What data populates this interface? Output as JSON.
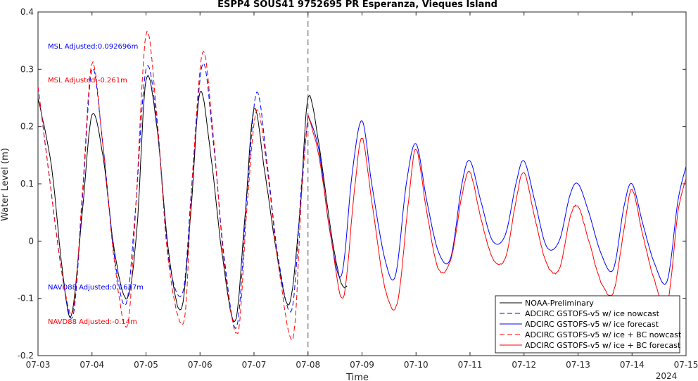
{
  "chart_data": {
    "type": "line",
    "title": "ESPP4 SOUS41 9752695 PR Esperanza, Vieques Island",
    "xlabel": "Time",
    "ylabel": "Water Level (m)",
    "x_ticks": [
      "07-03",
      "07-04",
      "07-05",
      "07-06",
      "07-07",
      "07-08",
      "07-09",
      "07-10",
      "07-11",
      "07-12",
      "07-13",
      "07-14",
      "07-15"
    ],
    "x_year_label": "2024",
    "x_range_days": [
      0,
      12
    ],
    "ylim": [
      -0.2,
      0.4
    ],
    "y_ticks": [
      "-0.2",
      "-0.1",
      "0",
      "0.1",
      "0.2",
      "0.3",
      "0.4"
    ],
    "nowcast_forecast_divider_day": 5,
    "grid": false,
    "legend_position": "bottom-right",
    "annotations": [
      {
        "text": "MSL Adjusted:0.092696m",
        "color": "#0000ff"
      },
      {
        "text": "MSL Adjusted:-0.261m",
        "color": "#ff0000"
      },
      {
        "text": "NAVD88 Adjusted:0.1637m",
        "color": "#0000ff"
      },
      {
        "text": "NAVD88 Adjusted:-0.14m",
        "color": "#ff0000"
      }
    ],
    "series": [
      {
        "name": "NOAA-Preliminary",
        "color": "#000000",
        "dash": "solid",
        "x_days": [
          0.0,
          0.25,
          0.45,
          0.62,
          0.82,
          1.0,
          1.2,
          1.42,
          1.65,
          1.83,
          2.0,
          2.2,
          2.42,
          2.65,
          2.83,
          3.0,
          3.2,
          3.42,
          3.65,
          3.83,
          4.0,
          4.2,
          4.42,
          4.65,
          4.85,
          5.0,
          5.2,
          5.42,
          5.6,
          5.72
        ],
        "values": [
          0.25,
          0.13,
          -0.05,
          -0.13,
          0.05,
          0.22,
          0.15,
          -0.02,
          -0.1,
          0.02,
          0.28,
          0.2,
          -0.02,
          -0.12,
          0.05,
          0.26,
          0.15,
          -0.03,
          -0.14,
          0.04,
          0.23,
          0.12,
          -0.02,
          -0.11,
          0.05,
          0.25,
          0.17,
          0.02,
          -0.07,
          -0.08
        ]
      },
      {
        "name": "ADCIRC GSTOFS-v5 w/ ice nowcast",
        "color": "#0000ff",
        "dash": "dashed",
        "x_days": [
          0.0,
          0.2,
          0.45,
          0.65,
          0.82,
          1.0,
          1.2,
          1.42,
          1.63,
          1.8,
          2.0,
          2.2,
          2.42,
          2.68,
          2.85,
          3.05,
          3.25,
          3.45,
          3.68,
          3.87,
          4.05,
          4.25,
          4.45,
          4.7,
          4.88,
          5.0
        ],
        "values": [
          0.27,
          0.12,
          -0.06,
          -0.13,
          0.07,
          0.3,
          0.17,
          -0.03,
          -0.11,
          0.05,
          0.3,
          0.21,
          -0.03,
          -0.09,
          0.1,
          0.31,
          0.17,
          -0.03,
          -0.15,
          0.08,
          0.26,
          0.13,
          -0.03,
          -0.12,
          0.1,
          0.22
        ]
      },
      {
        "name": "ADCIRC GSTOFS-v5 w/ ice forecast",
        "color": "#0000ff",
        "dash": "solid",
        "x_days": [
          5.0,
          5.2,
          5.4,
          5.62,
          5.82,
          6.0,
          6.18,
          6.42,
          6.62,
          6.82,
          7.0,
          7.2,
          7.42,
          7.64,
          7.85,
          8.0,
          8.2,
          8.42,
          8.65,
          8.85,
          9.0,
          9.2,
          9.42,
          9.65,
          9.85,
          10.0,
          10.2,
          10.42,
          10.65,
          10.85,
          11.0,
          11.2,
          11.42,
          11.65,
          11.85,
          12.0
        ],
        "values": [
          0.22,
          0.16,
          0.02,
          -0.06,
          0.12,
          0.21,
          0.1,
          -0.03,
          -0.06,
          0.1,
          0.17,
          0.07,
          -0.02,
          -0.03,
          0.1,
          0.14,
          0.07,
          0.0,
          0.01,
          0.1,
          0.14,
          0.07,
          -0.01,
          0.0,
          0.08,
          0.1,
          0.05,
          -0.02,
          -0.05,
          0.06,
          0.1,
          0.03,
          -0.04,
          -0.07,
          0.07,
          0.13
        ]
      },
      {
        "name": "ADCIRC GSTOFS-v5 w/ ice + BC nowcast",
        "color": "#ff0000",
        "dash": "dashed",
        "x_days": [
          0.0,
          0.2,
          0.45,
          0.65,
          0.82,
          1.0,
          1.2,
          1.42,
          1.65,
          1.8,
          2.0,
          2.2,
          2.42,
          2.7,
          2.85,
          3.05,
          3.25,
          3.45,
          3.7,
          3.87,
          4.05,
          4.25,
          4.45,
          4.72,
          4.88,
          5.0
        ],
        "values": [
          0.27,
          0.12,
          -0.06,
          -0.12,
          0.08,
          0.31,
          0.17,
          -0.04,
          -0.15,
          0.04,
          0.36,
          0.22,
          -0.04,
          -0.14,
          0.1,
          0.33,
          0.18,
          -0.04,
          -0.16,
          0.06,
          0.23,
          0.12,
          -0.04,
          -0.17,
          0.08,
          0.22
        ]
      },
      {
        "name": "ADCIRC GSTOFS-v5 w/ ice + BC forecast",
        "color": "#ff0000",
        "dash": "solid",
        "x_days": [
          5.0,
          5.2,
          5.42,
          5.65,
          5.85,
          6.0,
          6.18,
          6.42,
          6.65,
          6.85,
          7.0,
          7.2,
          7.42,
          7.65,
          7.85,
          8.0,
          8.2,
          8.42,
          8.65,
          8.85,
          9.0,
          9.2,
          9.42,
          9.65,
          9.85,
          10.0,
          10.2,
          10.42,
          10.65,
          10.85,
          11.0,
          11.2,
          11.42,
          11.65,
          11.85,
          12.0
        ],
        "values": [
          0.22,
          0.15,
          0.01,
          -0.1,
          0.08,
          0.18,
          0.07,
          -0.08,
          -0.11,
          0.06,
          0.16,
          0.05,
          -0.05,
          -0.03,
          0.08,
          0.12,
          0.04,
          -0.03,
          -0.03,
          0.07,
          0.12,
          0.04,
          -0.04,
          -0.05,
          0.04,
          0.06,
          0.0,
          -0.07,
          -0.09,
          0.02,
          0.09,
          0.01,
          -0.07,
          -0.11,
          0.05,
          0.11
        ]
      }
    ]
  }
}
